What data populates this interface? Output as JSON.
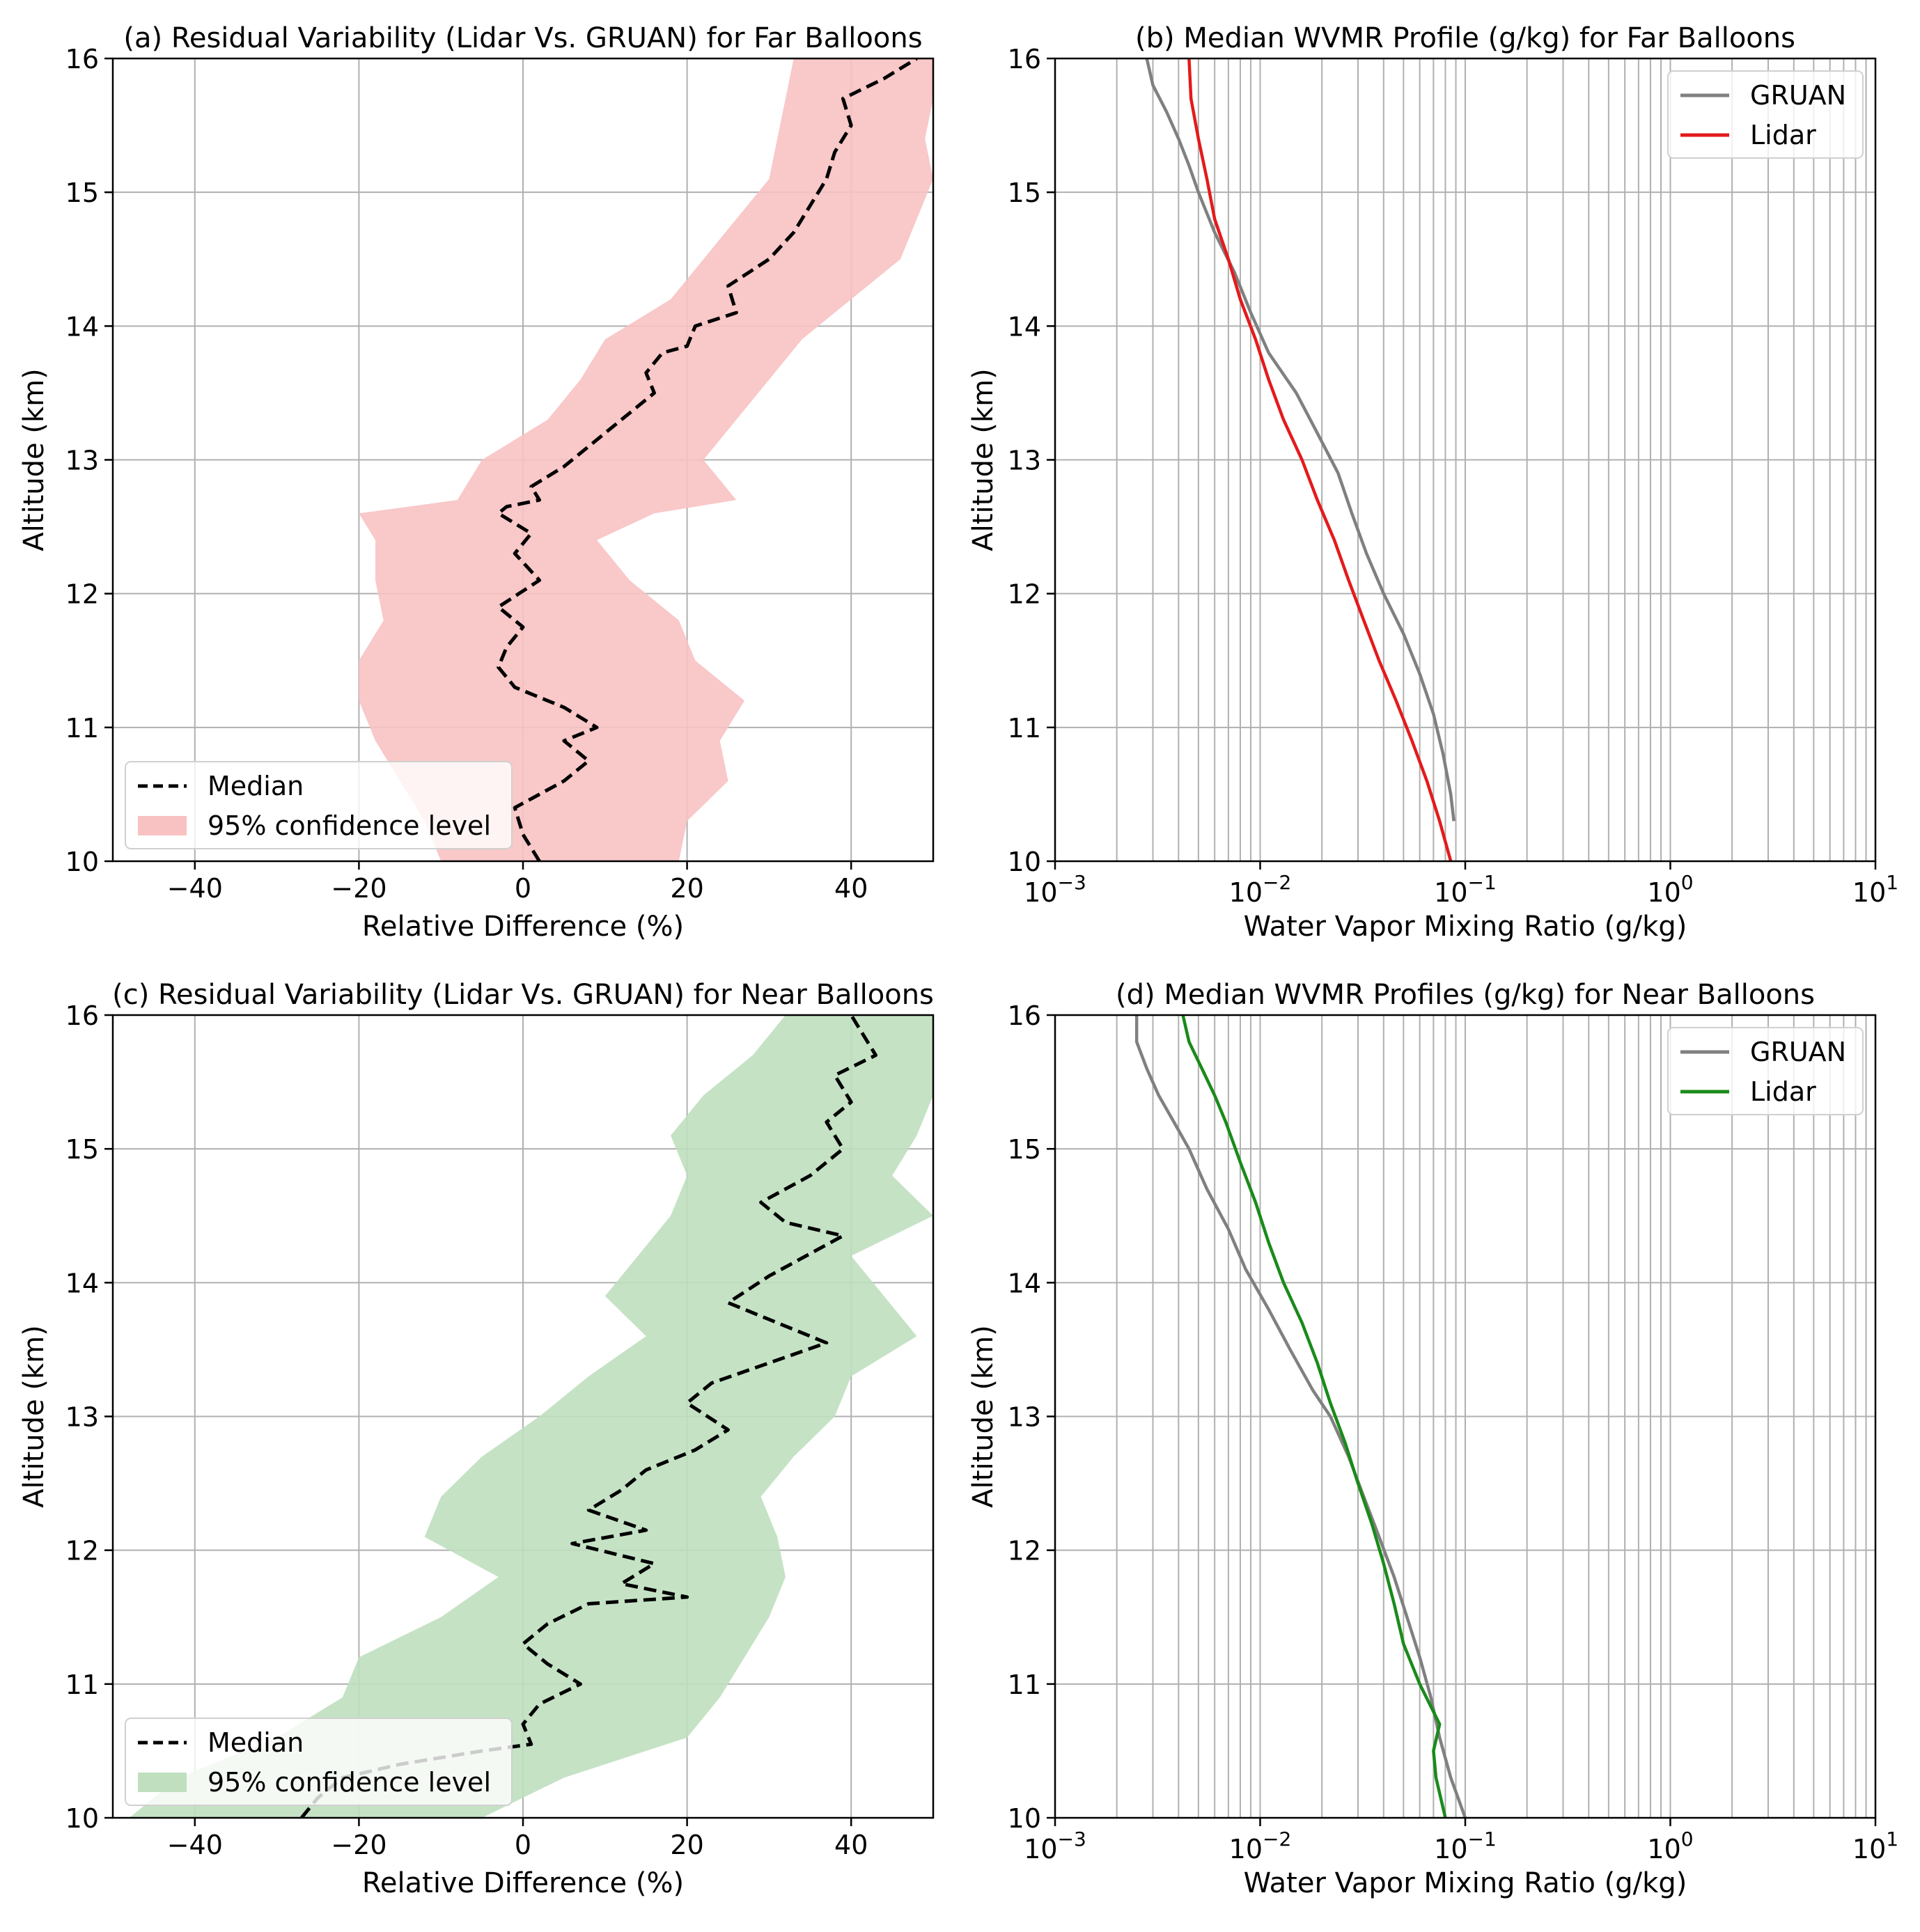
{
  "chart_data": [
    {
      "type": "area",
      "title": "(a) Residual Variability (Lidar Vs. GRUAN) for Far Balloons",
      "xlabel": "Relative Difference (%)",
      "ylabel": "Altitude (km)",
      "xlim": [
        -50,
        50
      ],
      "ylim": [
        10,
        16
      ],
      "x_ticks": [
        "−40",
        "−20",
        "0",
        "20",
        "40"
      ],
      "y_ticks": [
        "10",
        "11",
        "12",
        "13",
        "14",
        "15",
        "16"
      ],
      "grid": true,
      "legend_position": "lower-left",
      "fill_color": "#f8c2c2",
      "series": [
        {
          "name": "Median",
          "style": "dashed",
          "color": "#000000",
          "x": [
            2,
            0,
            -1,
            2,
            5,
            8,
            5,
            9,
            5,
            3,
            -1,
            -3,
            -2,
            0,
            -3,
            2,
            -1,
            1,
            -3,
            -2,
            2,
            1,
            5,
            8,
            12,
            16,
            15,
            17,
            20,
            21,
            26,
            25,
            30,
            33,
            35,
            37,
            38,
            40,
            39,
            44,
            48
          ],
          "y": [
            10.0,
            10.2,
            10.4,
            10.5,
            10.6,
            10.75,
            10.9,
            11.0,
            11.15,
            11.2,
            11.3,
            11.45,
            11.6,
            11.75,
            11.9,
            12.1,
            12.3,
            12.45,
            12.6,
            12.65,
            12.7,
            12.8,
            12.95,
            13.1,
            13.3,
            13.5,
            13.65,
            13.8,
            13.85,
            14.0,
            14.1,
            14.3,
            14.5,
            14.7,
            14.9,
            15.1,
            15.3,
            15.5,
            15.7,
            15.85,
            16.0
          ]
        },
        {
          "name": "95% confidence level",
          "fill": true,
          "y": [
            10.0,
            10.3,
            10.6,
            10.9,
            11.2,
            11.5,
            11.8,
            12.1,
            12.4,
            12.6,
            12.7,
            13.0,
            13.3,
            13.6,
            13.9,
            14.2,
            14.5,
            14.8,
            15.1,
            15.4,
            15.7,
            16.0
          ],
          "lower": [
            -10,
            -12,
            -15,
            -18,
            -20,
            -20,
            -17,
            -18,
            -18,
            -20,
            -8,
            -5,
            3,
            7,
            10,
            18,
            22,
            26,
            30,
            31,
            32,
            33
          ],
          "upper": [
            19,
            20,
            25,
            24,
            27,
            21,
            19,
            13,
            9,
            16,
            26,
            22,
            26,
            30,
            34,
            40,
            46,
            48,
            50,
            49,
            50,
            50
          ]
        }
      ]
    },
    {
      "type": "line",
      "title": "(b) Median WVMR Profile (g/kg) for Far Balloons",
      "xlabel": "Water Vapor Mixing Ratio (g/kg)",
      "ylabel": "Altitude (km)",
      "xscale": "log",
      "xlim": [
        0.001,
        10
      ],
      "ylim": [
        10,
        16
      ],
      "x_ticks": [
        "10^-3",
        "10^-2",
        "10^-1",
        "10^0",
        "10^1"
      ],
      "y_ticks": [
        "10",
        "11",
        "12",
        "13",
        "14",
        "15",
        "16"
      ],
      "grid": true,
      "legend_position": "top-right",
      "series": [
        {
          "name": "GRUAN",
          "color": "#808080",
          "x": [
            0.088,
            0.085,
            0.078,
            0.07,
            0.06,
            0.05,
            0.04,
            0.033,
            0.028,
            0.024,
            0.019,
            0.015,
            0.011,
            0.009,
            0.0075,
            0.006,
            0.005,
            0.0045,
            0.004,
            0.0035,
            0.003,
            0.0028
          ],
          "y": [
            10.3,
            10.5,
            10.8,
            11.1,
            11.4,
            11.7,
            12.0,
            12.3,
            12.6,
            12.9,
            13.2,
            13.5,
            13.8,
            14.1,
            14.4,
            14.7,
            15.0,
            15.2,
            15.4,
            15.6,
            15.8,
            16.0
          ]
        },
        {
          "name": "Lidar",
          "color": "#e41a1c",
          "x": [
            0.085,
            0.075,
            0.065,
            0.055,
            0.046,
            0.038,
            0.032,
            0.027,
            0.023,
            0.019,
            0.016,
            0.013,
            0.011,
            0.0095,
            0.008,
            0.007,
            0.006,
            0.0055,
            0.005,
            0.0046,
            0.0045
          ],
          "y": [
            10.0,
            10.3,
            10.6,
            10.9,
            11.2,
            11.5,
            11.8,
            12.1,
            12.4,
            12.7,
            13.0,
            13.3,
            13.6,
            13.9,
            14.2,
            14.5,
            14.8,
            15.1,
            15.4,
            15.7,
            16.0
          ]
        }
      ],
      "legend": [
        "GRUAN",
        "Lidar"
      ]
    },
    {
      "type": "area",
      "title": "(c) Residual Variability (Lidar Vs. GRUAN) for Near Balloons",
      "xlabel": "Relative Difference (%)",
      "ylabel": "Altitude (km)",
      "xlim": [
        -50,
        50
      ],
      "ylim": [
        10,
        16
      ],
      "x_ticks": [
        "−40",
        "−20",
        "0",
        "20",
        "40"
      ],
      "y_ticks": [
        "10",
        "11",
        "12",
        "13",
        "14",
        "15",
        "16"
      ],
      "grid": true,
      "legend_position": "lower-left",
      "fill_color": "#bfdfbf",
      "series": [
        {
          "name": "Median",
          "style": "dashed",
          "color": "#000000",
          "x": [
            -27,
            -25,
            -22,
            -15,
            -5,
            1,
            0,
            2,
            7,
            3,
            0,
            3,
            8,
            20,
            12,
            16,
            6,
            15,
            8,
            12,
            15,
            21,
            25,
            20,
            23,
            30,
            37,
            31,
            25,
            30,
            39,
            32,
            29,
            35,
            39,
            37,
            40,
            38,
            43,
            40
          ],
          "y": [
            10.0,
            10.15,
            10.3,
            10.4,
            10.5,
            10.55,
            10.7,
            10.85,
            11.0,
            11.15,
            11.3,
            11.45,
            11.6,
            11.65,
            11.75,
            11.9,
            12.05,
            12.15,
            12.3,
            12.45,
            12.6,
            12.75,
            12.9,
            13.1,
            13.25,
            13.4,
            13.55,
            13.7,
            13.85,
            14.05,
            14.35,
            14.45,
            14.6,
            14.8,
            15.0,
            15.2,
            15.35,
            15.55,
            15.7,
            16.0
          ]
        },
        {
          "name": "95% confidence level",
          "fill": true,
          "y": [
            10.0,
            10.3,
            10.6,
            10.9,
            11.2,
            11.5,
            11.8,
            12.1,
            12.4,
            12.7,
            13.0,
            13.3,
            13.6,
            13.9,
            14.2,
            14.5,
            14.8,
            15.1,
            15.4,
            15.7,
            16.0
          ],
          "lower": [
            -48,
            -42,
            -30,
            -22,
            -20,
            -10,
            -3,
            -12,
            -10,
            -5,
            2,
            8,
            15,
            10,
            14,
            18,
            20,
            18,
            22,
            28,
            32
          ],
          "upper": [
            -5,
            5,
            20,
            24,
            27,
            30,
            32,
            31,
            29,
            33,
            38,
            40,
            48,
            44,
            40,
            50,
            45,
            48,
            50,
            50,
            50
          ]
        }
      ]
    },
    {
      "type": "line",
      "title": "(d) Median WVMR Profiles (g/kg) for Near Balloons",
      "xlabel": "Water Vapor Mixing Ratio (g/kg)",
      "ylabel": "Altitude (km)",
      "xscale": "log",
      "xlim": [
        0.001,
        10
      ],
      "ylim": [
        10,
        16
      ],
      "x_ticks": [
        "10^-3",
        "10^-2",
        "10^-1",
        "10^0",
        "10^1"
      ],
      "y_ticks": [
        "10",
        "11",
        "12",
        "13",
        "14",
        "15",
        "16"
      ],
      "grid": true,
      "legend_position": "top-right",
      "series": [
        {
          "name": "GRUAN",
          "color": "#808080",
          "x": [
            0.1,
            0.085,
            0.075,
            0.068,
            0.06,
            0.052,
            0.045,
            0.038,
            0.032,
            0.027,
            0.022,
            0.018,
            0.014,
            0.011,
            0.0085,
            0.007,
            0.0055,
            0.0045,
            0.0038,
            0.0032,
            0.0028,
            0.0025,
            0.0025
          ],
          "y": [
            10.0,
            10.3,
            10.6,
            10.9,
            11.2,
            11.5,
            11.8,
            12.1,
            12.4,
            12.7,
            13.0,
            13.2,
            13.5,
            13.8,
            14.1,
            14.4,
            14.7,
            15.0,
            15.2,
            15.4,
            15.6,
            15.8,
            16.0
          ]
        },
        {
          "name": "Lidar",
          "color": "#1a8a1a",
          "x": [
            0.08,
            0.072,
            0.07,
            0.075,
            0.06,
            0.05,
            0.045,
            0.04,
            0.035,
            0.03,
            0.026,
            0.022,
            0.019,
            0.016,
            0.013,
            0.011,
            0.0095,
            0.008,
            0.0068,
            0.006,
            0.0052,
            0.0045,
            0.0042
          ],
          "y": [
            10.0,
            10.3,
            10.5,
            10.7,
            11.0,
            11.3,
            11.6,
            11.9,
            12.2,
            12.5,
            12.8,
            13.1,
            13.4,
            13.7,
            14.0,
            14.3,
            14.6,
            14.9,
            15.2,
            15.4,
            15.6,
            15.8,
            16.0
          ]
        }
      ],
      "legend": [
        "GRUAN",
        "Lidar"
      ]
    }
  ]
}
